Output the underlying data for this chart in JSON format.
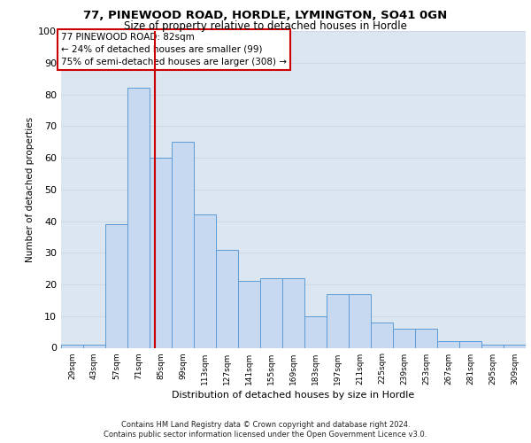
{
  "title1": "77, PINEWOOD ROAD, HORDLE, LYMINGTON, SO41 0GN",
  "title2": "Size of property relative to detached houses in Hordle",
  "xlabel": "Distribution of detached houses by size in Hordle",
  "ylabel": "Number of detached properties",
  "categories": [
    "29sqm",
    "43sqm",
    "57sqm",
    "71sqm",
    "85sqm",
    "99sqm",
    "113sqm",
    "127sqm",
    "141sqm",
    "155sqm",
    "169sqm",
    "183sqm",
    "197sqm",
    "211sqm",
    "225sqm",
    "239sqm",
    "253sqm",
    "267sqm",
    "281sqm",
    "295sqm",
    "309sqm"
  ],
  "values": [
    1,
    1,
    39,
    82,
    60,
    65,
    42,
    31,
    21,
    22,
    22,
    10,
    17,
    17,
    8,
    6,
    6,
    2,
    2,
    1,
    1
  ],
  "bar_color": "#c6d9f0",
  "bar_edge_color": "#5b9bd5",
  "vline_x": 3.75,
  "vline_color": "#cc0000",
  "annotation_line1": "77 PINEWOOD ROAD: 82sqm",
  "annotation_line2": "← 24% of detached houses are smaller (99)",
  "annotation_line3": "75% of semi-detached houses are larger (308) →",
  "annotation_box_edge": "#cc0000",
  "grid_color": "#d0d8e4",
  "background_color": "#dce6f1",
  "footer1": "Contains HM Land Registry data © Crown copyright and database right 2024.",
  "footer2": "Contains public sector information licensed under the Open Government Licence v3.0.",
  "ylim": [
    0,
    100
  ],
  "yticks": [
    0,
    10,
    20,
    30,
    40,
    50,
    60,
    70,
    80,
    90,
    100
  ]
}
